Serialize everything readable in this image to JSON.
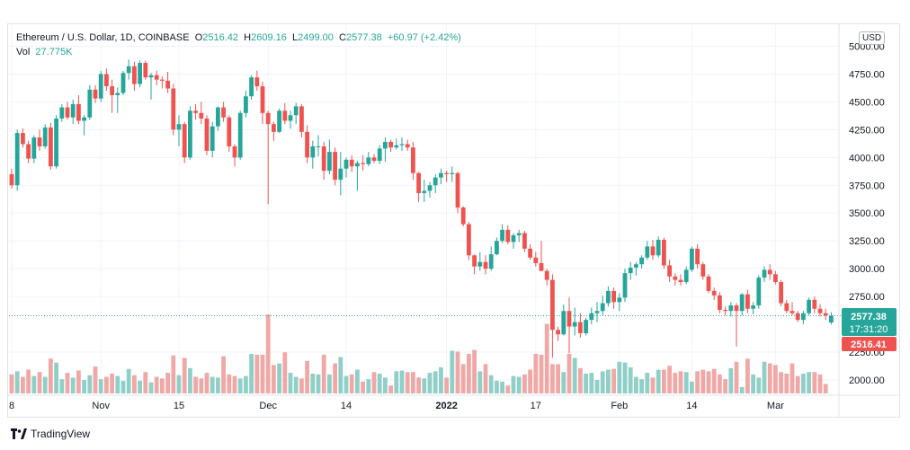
{
  "header": {
    "symbol": "Ethereum / U.S. Dollar, 1D, COINBASE",
    "o_label": "O",
    "o": "2516.42",
    "h_label": "H",
    "h": "2609.16",
    "l_label": "L",
    "l": "2499.00",
    "c_label": "C",
    "c": "2577.38",
    "change": "+60.97 (+2.42%)",
    "vol_label": "Vol",
    "vol": "27.775K"
  },
  "currency": "USD",
  "brand": "TradingView",
  "colors": {
    "up": "#26a69a",
    "down": "#ef5350",
    "up_vol": "#8fcfc7",
    "down_vol": "#f0a8a6",
    "grid": "#f0f3fa"
  },
  "price_tags": {
    "last": "2577.38",
    "countdown": "17:31:20",
    "open": "2516.41"
  },
  "chart_data": {
    "type": "candlestick",
    "y_axis": {
      "ylim": [
        1900,
        5100
      ],
      "ticks": [
        "5000.00",
        "4750.00",
        "4500.00",
        "4250.00",
        "4000.00",
        "3750.00",
        "3500.00",
        "3250.00",
        "3000.00",
        "2750.00",
        "2250.00",
        "2000.00"
      ]
    },
    "x_axis": {
      "ticks": [
        {
          "label": "8",
          "index": 0
        },
        {
          "label": "Nov",
          "index": 16
        },
        {
          "label": "15",
          "index": 30
        },
        {
          "label": "Dec",
          "index": 46
        },
        {
          "label": "14",
          "index": 60
        },
        {
          "label": "2022",
          "index": 78
        },
        {
          "label": "17",
          "index": 94
        },
        {
          "label": "Feb",
          "index": 109
        },
        {
          "label": "14",
          "index": 122
        },
        {
          "label": "Mar",
          "index": 137
        }
      ]
    },
    "candles": [
      [
        3850,
        3900,
        3720,
        3750
      ],
      [
        3750,
        4250,
        3700,
        4220
      ],
      [
        4220,
        4260,
        4090,
        4120
      ],
      [
        4120,
        4150,
        3950,
        3990
      ],
      [
        3990,
        4200,
        3950,
        4180
      ],
      [
        4180,
        4250,
        4060,
        4100
      ],
      [
        4100,
        4300,
        4080,
        4270
      ],
      [
        4270,
        4310,
        3890,
        3920
      ],
      [
        3920,
        4380,
        3900,
        4350
      ],
      [
        4350,
        4480,
        4320,
        4450
      ],
      [
        4450,
        4500,
        4340,
        4360
      ],
      [
        4360,
        4520,
        4300,
        4480
      ],
      [
        4480,
        4560,
        4300,
        4330
      ],
      [
        4330,
        4380,
        4200,
        4360
      ],
      [
        4360,
        4650,
        4340,
        4610
      ],
      [
        4610,
        4650,
        4490,
        4530
      ],
      [
        4530,
        4780,
        4500,
        4750
      ],
      [
        4750,
        4800,
        4600,
        4640
      ],
      [
        4640,
        4700,
        4400,
        4560
      ],
      [
        4560,
        4630,
        4400,
        4580
      ],
      [
        4580,
        4780,
        4560,
        4760
      ],
      [
        4760,
        4880,
        4700,
        4820
      ],
      [
        4820,
        4860,
        4600,
        4660
      ],
      [
        4660,
        4870,
        4630,
        4850
      ],
      [
        4850,
        4870,
        4700,
        4720
      ],
      [
        4720,
        4760,
        4520,
        4740
      ],
      [
        4740,
        4780,
        4650,
        4700
      ],
      [
        4700,
        4730,
        4620,
        4690
      ],
      [
        4690,
        4770,
        4580,
        4620
      ],
      [
        4620,
        4660,
        4200,
        4250
      ],
      [
        4250,
        4380,
        4100,
        4300
      ],
      [
        4300,
        4320,
        3950,
        4000
      ],
      [
        4000,
        4460,
        3980,
        4420
      ],
      [
        4420,
        4480,
        4340,
        4400
      ],
      [
        4400,
        4500,
        4300,
        4350
      ],
      [
        4350,
        4380,
        4020,
        4060
      ],
      [
        4060,
        4320,
        4000,
        4280
      ],
      [
        4280,
        4460,
        4240,
        4450
      ],
      [
        4450,
        4500,
        4320,
        4360
      ],
      [
        4360,
        4380,
        4050,
        4100
      ],
      [
        4100,
        4120,
        3920,
        4000
      ],
      [
        4000,
        4420,
        3980,
        4400
      ],
      [
        4400,
        4600,
        4360,
        4550
      ],
      [
        4550,
        4740,
        4520,
        4720
      ],
      [
        4720,
        4780,
        4600,
        4640
      ],
      [
        4640,
        4680,
        4300,
        4400
      ],
      [
        4400,
        4420,
        3580,
        4300
      ],
      [
        4300,
        4320,
        4150,
        4230
      ],
      [
        4230,
        4440,
        4220,
        4420
      ],
      [
        4420,
        4490,
        4300,
        4330
      ],
      [
        4330,
        4420,
        4260,
        4380
      ],
      [
        4380,
        4490,
        4300,
        4460
      ],
      [
        4460,
        4480,
        4180,
        4230
      ],
      [
        4230,
        4290,
        3950,
        4000
      ],
      [
        4000,
        4150,
        3900,
        4100
      ],
      [
        4100,
        4200,
        4010,
        4100
      ],
      [
        4100,
        4140,
        3800,
        3880
      ],
      [
        3880,
        4160,
        3850,
        4050
      ],
      [
        4050,
        4090,
        3750,
        3800
      ],
      [
        3800,
        4050,
        3660,
        3900
      ],
      [
        3900,
        4000,
        3820,
        3980
      ],
      [
        3980,
        4020,
        3870,
        3920
      ],
      [
        3920,
        3970,
        3700,
        3950
      ],
      [
        3950,
        4020,
        3880,
        3940
      ],
      [
        3940,
        4050,
        3920,
        4000
      ],
      [
        4000,
        4030,
        3950,
        3970
      ],
      [
        3970,
        4110,
        3940,
        4080
      ],
      [
        4080,
        4180,
        3960,
        4140
      ],
      [
        4140,
        4160,
        4050,
        4090
      ],
      [
        4090,
        4170,
        4070,
        4110
      ],
      [
        4110,
        4180,
        4060,
        4120
      ],
      [
        4120,
        4160,
        4060,
        4090
      ],
      [
        4090,
        4140,
        3800,
        3860
      ],
      [
        3860,
        3870,
        3600,
        3680
      ],
      [
        3680,
        3800,
        3600,
        3700
      ],
      [
        3700,
        3780,
        3640,
        3750
      ],
      [
        3750,
        3850,
        3680,
        3820
      ],
      [
        3820,
        3900,
        3760,
        3860
      ],
      [
        3860,
        3880,
        3780,
        3850
      ],
      [
        3850,
        3920,
        3780,
        3860
      ],
      [
        3860,
        3870,
        3500,
        3550
      ],
      [
        3550,
        3560,
        3380,
        3400
      ],
      [
        3400,
        3420,
        3080,
        3120
      ],
      [
        3120,
        3130,
        2950,
        3020
      ],
      [
        3020,
        3150,
        2980,
        3060
      ],
      [
        3060,
        3120,
        2950,
        3000
      ],
      [
        3000,
        3200,
        2980,
        3130
      ],
      [
        3130,
        3280,
        3120,
        3250
      ],
      [
        3250,
        3400,
        3230,
        3350
      ],
      [
        3350,
        3390,
        3220,
        3240
      ],
      [
        3240,
        3320,
        3180,
        3300
      ],
      [
        3300,
        3350,
        3240,
        3320
      ],
      [
        3320,
        3340,
        3150,
        3180
      ],
      [
        3180,
        3220,
        3080,
        3100
      ],
      [
        3100,
        3150,
        3020,
        3050
      ],
      [
        3050,
        3250,
        2980,
        2980
      ],
      [
        2980,
        3000,
        2850,
        2900
      ],
      [
        2900,
        2950,
        2200,
        2450
      ],
      [
        2450,
        2480,
        2350,
        2410
      ],
      [
        2410,
        2680,
        2400,
        2620
      ],
      [
        2620,
        2740,
        2240,
        2480
      ],
      [
        2480,
        2650,
        2400,
        2520
      ],
      [
        2520,
        2600,
        2380,
        2420
      ],
      [
        2420,
        2560,
        2400,
        2540
      ],
      [
        2540,
        2650,
        2500,
        2600
      ],
      [
        2600,
        2700,
        2520,
        2620
      ],
      [
        2620,
        2760,
        2580,
        2690
      ],
      [
        2690,
        2840,
        2660,
        2800
      ],
      [
        2800,
        2830,
        2640,
        2700
      ],
      [
        2700,
        2780,
        2620,
        2740
      ],
      [
        2740,
        3000,
        2700,
        2960
      ],
      [
        2960,
        3060,
        2900,
        3010
      ],
      [
        3010,
        3060,
        2940,
        3040
      ],
      [
        3040,
        3120,
        3000,
        3100
      ],
      [
        3100,
        3250,
        3080,
        3200
      ],
      [
        3200,
        3260,
        3080,
        3120
      ],
      [
        3120,
        3290,
        3100,
        3260
      ],
      [
        3260,
        3280,
        3000,
        3030
      ],
      [
        3030,
        3080,
        2880,
        2930
      ],
      [
        2930,
        2960,
        2850,
        2900
      ],
      [
        2900,
        2950,
        2850,
        2880
      ],
      [
        2880,
        3020,
        2860,
        2990
      ],
      [
        2990,
        3200,
        2970,
        3180
      ],
      [
        3180,
        3220,
        3000,
        3040
      ],
      [
        3040,
        3060,
        2900,
        2930
      ],
      [
        2930,
        2950,
        2780,
        2800
      ],
      [
        2800,
        2830,
        2720,
        2760
      ],
      [
        2760,
        2790,
        2600,
        2630
      ],
      [
        2630,
        2660,
        2580,
        2620
      ],
      [
        2620,
        2700,
        2570,
        2670
      ],
      [
        2670,
        2690,
        2300,
        2620
      ],
      [
        2620,
        2780,
        2580,
        2770
      ],
      [
        2770,
        2810,
        2600,
        2640
      ],
      [
        2640,
        2700,
        2590,
        2670
      ],
      [
        2670,
        2940,
        2640,
        2920
      ],
      [
        2920,
        3020,
        2880,
        2990
      ],
      [
        2990,
        3040,
        2900,
        2950
      ],
      [
        2950,
        2980,
        2860,
        2880
      ],
      [
        2880,
        2900,
        2660,
        2690
      ],
      [
        2690,
        2720,
        2600,
        2620
      ],
      [
        2620,
        2700,
        2580,
        2600
      ],
      [
        2600,
        2620,
        2520,
        2540
      ],
      [
        2540,
        2620,
        2500,
        2600
      ],
      [
        2600,
        2740,
        2580,
        2720
      ],
      [
        2720,
        2750,
        2600,
        2640
      ],
      [
        2640,
        2680,
        2570,
        2600
      ],
      [
        2600,
        2640,
        2540,
        2580
      ],
      [
        2516.42,
        2609.16,
        2499,
        2577.38
      ]
    ],
    "volumes": [
      24,
      28,
      21,
      30,
      22,
      27,
      21,
      44,
      39,
      18,
      26,
      20,
      29,
      17,
      23,
      34,
      18,
      21,
      25,
      22,
      16,
      31,
      23,
      16,
      27,
      14,
      21,
      19,
      26,
      48,
      23,
      45,
      32,
      21,
      19,
      26,
      21,
      20,
      47,
      24,
      22,
      19,
      22,
      50,
      49,
      49,
      100,
      36,
      38,
      52,
      26,
      21,
      19,
      41,
      25,
      24,
      49,
      24,
      38,
      46,
      22,
      24,
      30,
      15,
      18,
      27,
      25,
      20,
      10,
      28,
      29,
      27,
      27,
      20,
      19,
      26,
      28,
      33,
      20,
      54,
      53,
      37,
      50,
      55,
      28,
      37,
      23,
      16,
      15,
      10,
      22,
      21,
      24,
      30,
      50,
      49,
      88,
      37,
      37,
      27,
      50,
      45,
      32,
      25,
      26,
      17,
      28,
      30,
      31,
      40,
      39,
      33,
      21,
      18,
      26,
      20,
      30,
      30,
      35,
      26,
      28,
      27,
      15,
      28,
      30,
      28,
      31,
      24,
      18,
      32,
      40,
      8,
      44,
      24,
      20,
      40,
      38,
      36,
      27,
      25,
      38,
      22,
      25,
      27,
      27,
      24,
      12
    ],
    "last_price": 2577.38
  }
}
